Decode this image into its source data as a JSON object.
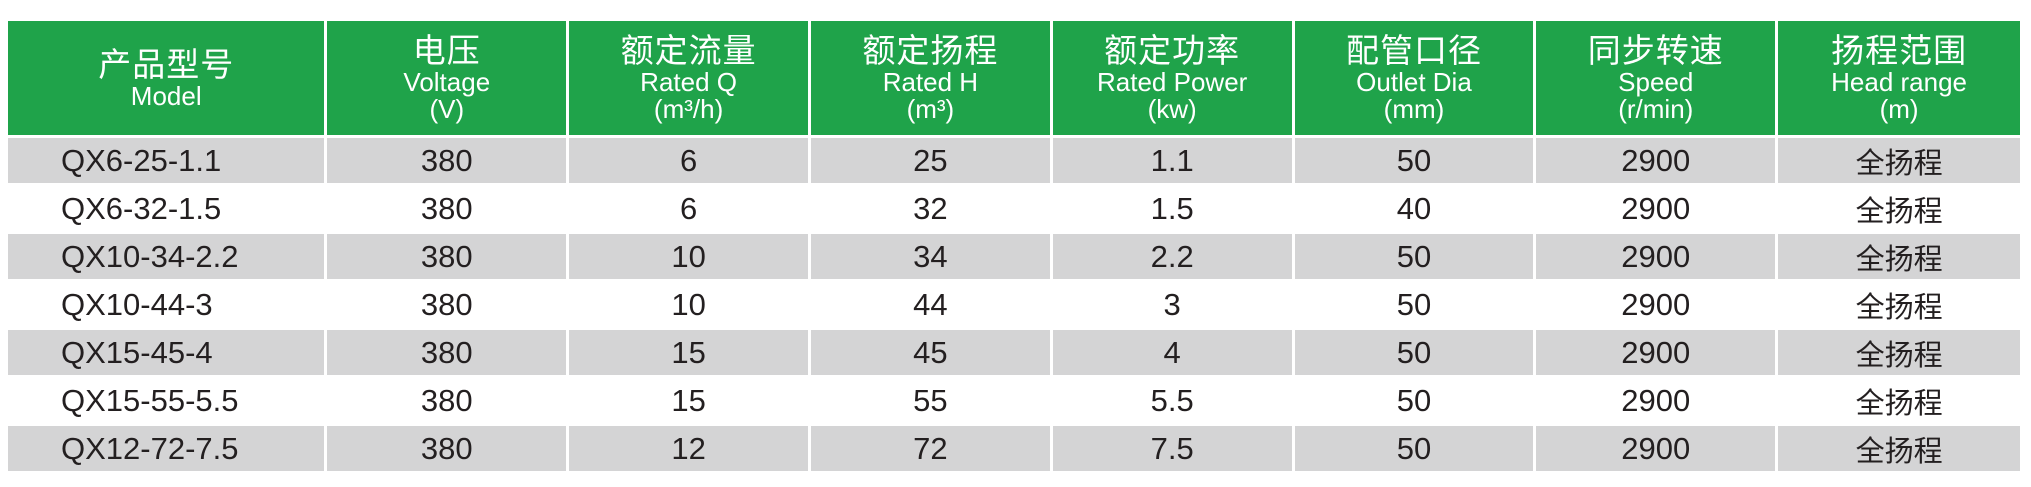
{
  "colors": {
    "header_bg": "#1fa34a",
    "header_text": "#ffffff",
    "shaded_row": "#d4d4d5",
    "text": "#231f20"
  },
  "headers": [
    {
      "cn": "产品型号",
      "en": "Model",
      "unit": ""
    },
    {
      "cn": "电压",
      "en": "Voltage",
      "unit": "(V)"
    },
    {
      "cn": "额定流量",
      "en": "Rated Q",
      "unit": "(m³/h)"
    },
    {
      "cn": "额定扬程",
      "en": "Rated H",
      "unit": "(m³)"
    },
    {
      "cn": "额定功率",
      "en": "Rated Power",
      "unit": "(kw)"
    },
    {
      "cn": "配管口径",
      "en": "Outlet Dia",
      "unit": "(mm)"
    },
    {
      "cn": "同步转速",
      "en": "Speed",
      "unit": "(r/min)"
    },
    {
      "cn": "扬程范围",
      "en": "Head range",
      "unit": "(m)"
    }
  ],
  "rows": [
    [
      "QX6-25-1.1",
      "380",
      "6",
      "25",
      "1.1",
      "50",
      "2900",
      "全扬程"
    ],
    [
      "QX6-32-1.5",
      "380",
      "6",
      "32",
      "1.5",
      "40",
      "2900",
      "全扬程"
    ],
    [
      "QX10-34-2.2",
      "380",
      "10",
      "34",
      "2.2",
      "50",
      "2900",
      "全扬程"
    ],
    [
      "QX10-44-3",
      "380",
      "10",
      "44",
      "3",
      "50",
      "2900",
      "全扬程"
    ],
    [
      "QX15-45-4",
      "380",
      "15",
      "45",
      "4",
      "50",
      "2900",
      "全扬程"
    ],
    [
      "QX15-55-5.5",
      "380",
      "15",
      "55",
      "5.5",
      "50",
      "2900",
      "全扬程"
    ],
    [
      "QX12-72-7.5",
      "380",
      "12",
      "72",
      "7.5",
      "50",
      "2900",
      "全扬程"
    ]
  ]
}
